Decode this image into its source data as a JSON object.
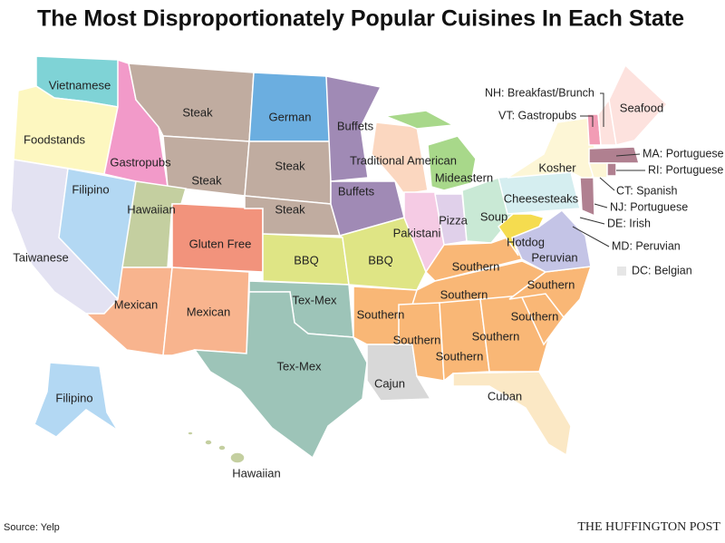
{
  "title": "The Most Disproportionately Popular Cuisines In Each State",
  "labels": [
    "Vietnamese",
    "Foodstands",
    "Gastropubs",
    "Steak",
    "German",
    "Buffets",
    "Steak",
    "Steak",
    "Steak",
    "Filipino",
    "Hawaiian",
    "Gluten Free",
    "Traditional American",
    "Mideastern",
    "Buffets",
    "Kosher",
    "Seafood",
    "Cheesesteaks",
    "Soup",
    "Pizza",
    "Pakistani",
    "Hotdog",
    "Peruvian",
    "BBQ",
    "BBQ",
    "Southern",
    "Southern",
    "Southern",
    "Southern",
    "Taiwanese",
    "Mexican",
    "Mexican",
    "Tex-Mex",
    "Southern",
    "Southern",
    "Southern",
    "Southern",
    "Tex-Mex",
    "Cajun",
    "Cuban",
    "Filipino",
    "Hawaiian"
  ],
  "callouts": [
    "NH: Breakfast/Brunch",
    "VT: Gastropubs",
    "MA: Portuguese",
    "RI: Portuguese",
    "CT: Spanish",
    "NJ: Portuguese",
    "DE: Irish",
    "MD: Peruvian",
    "DC: Belgian"
  ],
  "source": "Source: Yelp",
  "brand": "THE HUFFINGTON POST"
}
